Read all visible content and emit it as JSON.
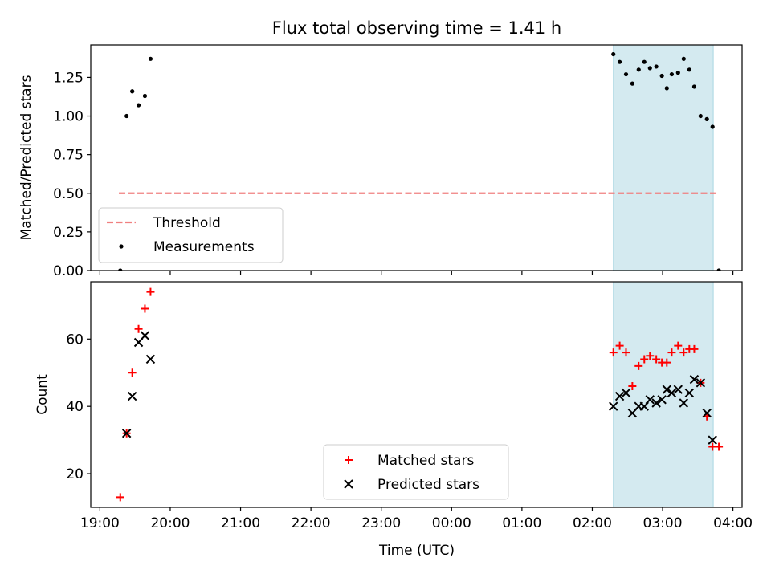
{
  "figure": {
    "title": "Flux total observing time = 1.41 h",
    "xlabel": "Time (UTC)",
    "x_ticks": [
      "19:00",
      "20:00",
      "21:00",
      "22:00",
      "23:00",
      "00:00",
      "01:00",
      "02:00",
      "03:00",
      "04:00"
    ]
  },
  "chart_data": [
    {
      "type": "scatter",
      "title": "Flux total observing time = 1.41 h",
      "xlabel": "",
      "ylabel": "Matched/Predicted stars",
      "x_unit": "hours since 19:00 UTC",
      "xlim": [
        -0.13,
        9.13
      ],
      "ylim": [
        0,
        1.46
      ],
      "yticks": [
        0,
        0.25,
        0.5,
        0.75,
        1.0,
        1.25
      ],
      "ytick_labels": [
        "0.00",
        "0.25",
        "0.50",
        "0.75",
        "1.00",
        "1.25"
      ],
      "shaded_region": {
        "x": [
          7.3,
          8.72
        ],
        "color": "#d4eaf0"
      },
      "threshold": {
        "name": "Threshold",
        "value": 0.5,
        "x": [
          0.27,
          8.8
        ],
        "color": "#f08080"
      },
      "series": [
        {
          "name": "Measurements",
          "color": "#000000",
          "points": [
            [
              0.29,
              0.0
            ],
            [
              0.38,
              1.0
            ],
            [
              0.46,
              1.16
            ],
            [
              0.55,
              1.07
            ],
            [
              0.64,
              1.13
            ],
            [
              0.72,
              1.37
            ],
            [
              7.3,
              1.4
            ],
            [
              7.39,
              1.35
            ],
            [
              7.48,
              1.27
            ],
            [
              7.57,
              1.21
            ],
            [
              7.66,
              1.3
            ],
            [
              7.74,
              1.35
            ],
            [
              7.82,
              1.31
            ],
            [
              7.91,
              1.32
            ],
            [
              7.99,
              1.26
            ],
            [
              8.06,
              1.18
            ],
            [
              8.13,
              1.27
            ],
            [
              8.22,
              1.28
            ],
            [
              8.3,
              1.37
            ],
            [
              8.38,
              1.3
            ],
            [
              8.45,
              1.19
            ],
            [
              8.54,
              1.0
            ],
            [
              8.63,
              0.98
            ],
            [
              8.71,
              0.93
            ],
            [
              8.8,
              0.0
            ]
          ]
        }
      ],
      "legend": {
        "position": "lower-left",
        "entries": [
          "Threshold",
          "Measurements"
        ]
      }
    },
    {
      "type": "scatter",
      "xlabel": "Time (UTC)",
      "ylabel": "Count",
      "x_unit": "hours since 19:00 UTC",
      "xlim": [
        -0.13,
        9.13
      ],
      "ylim": [
        10,
        77
      ],
      "yticks": [
        20,
        40,
        60
      ],
      "ytick_labels": [
        "20",
        "40",
        "60"
      ],
      "xtick_labels": [
        "19:00",
        "20:00",
        "21:00",
        "22:00",
        "23:00",
        "00:00",
        "01:00",
        "02:00",
        "03:00",
        "04:00"
      ],
      "shaded_region": {
        "x": [
          7.3,
          8.72
        ],
        "color": "#d4eaf0"
      },
      "series": [
        {
          "name": "Matched stars",
          "marker": "plus",
          "color": "#ff0000",
          "points": [
            [
              0.29,
              13
            ],
            [
              0.38,
              32
            ],
            [
              0.46,
              50
            ],
            [
              0.55,
              63
            ],
            [
              0.64,
              69
            ],
            [
              0.72,
              74
            ],
            [
              7.3,
              56
            ],
            [
              7.39,
              58
            ],
            [
              7.48,
              56
            ],
            [
              7.57,
              46
            ],
            [
              7.66,
              52
            ],
            [
              7.74,
              54
            ],
            [
              7.82,
              55
            ],
            [
              7.91,
              54
            ],
            [
              7.99,
              53
            ],
            [
              8.06,
              53
            ],
            [
              8.13,
              56
            ],
            [
              8.22,
              58
            ],
            [
              8.3,
              56
            ],
            [
              8.38,
              57
            ],
            [
              8.45,
              57
            ],
            [
              8.54,
              47
            ],
            [
              8.63,
              37
            ],
            [
              8.71,
              28
            ],
            [
              8.8,
              28
            ]
          ]
        },
        {
          "name": "Predicted stars",
          "marker": "x",
          "color": "#000000",
          "points": [
            [
              0.38,
              32
            ],
            [
              0.46,
              43
            ],
            [
              0.55,
              59
            ],
            [
              0.64,
              61
            ],
            [
              0.72,
              54
            ],
            [
              7.3,
              40
            ],
            [
              7.39,
              43
            ],
            [
              7.48,
              44
            ],
            [
              7.57,
              38
            ],
            [
              7.66,
              40
            ],
            [
              7.74,
              40
            ],
            [
              7.82,
              42
            ],
            [
              7.91,
              41
            ],
            [
              7.99,
              42
            ],
            [
              8.06,
              45
            ],
            [
              8.13,
              44
            ],
            [
              8.22,
              45
            ],
            [
              8.3,
              41
            ],
            [
              8.38,
              44
            ],
            [
              8.45,
              48
            ],
            [
              8.54,
              47
            ],
            [
              8.63,
              38
            ],
            [
              8.71,
              30
            ]
          ]
        }
      ],
      "legend": {
        "position": "lower-center",
        "entries": [
          "Matched stars",
          "Predicted stars"
        ]
      }
    }
  ]
}
